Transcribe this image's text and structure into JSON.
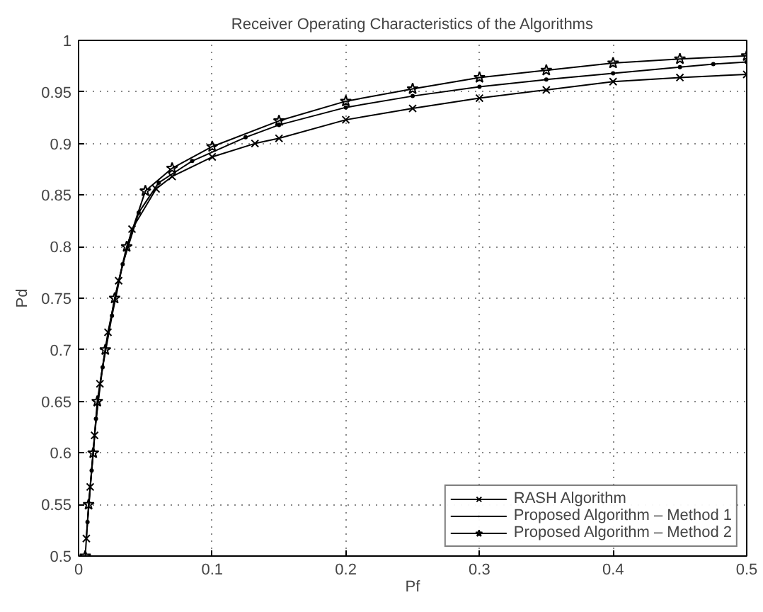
{
  "chart_data": {
    "type": "line",
    "title": "Receiver Operating Characteristics of the Algorithms",
    "xlabel": "Pf",
    "ylabel": "Pd",
    "xlim": [
      0,
      0.5
    ],
    "ylim": [
      0.5,
      1
    ],
    "xticks": [
      0,
      0.1,
      0.2,
      0.3,
      0.4,
      0.5
    ],
    "yticks": [
      0.5,
      0.55,
      0.6,
      0.65,
      0.7,
      0.75,
      0.8,
      0.85,
      0.9,
      0.95,
      1
    ],
    "grid": true,
    "legend": "bottom right",
    "line_style": "solid",
    "series": [
      {
        "name": "RASH Algorithm",
        "color": "#000000",
        "marker": "cross",
        "x": [
          0.0058,
          0.0087,
          0.012,
          0.016,
          0.022,
          0.03,
          0.04,
          0.058,
          0.07,
          0.1,
          0.132,
          0.15,
          0.2,
          0.25,
          0.3,
          0.35,
          0.4,
          0.45,
          0.5
        ],
        "values": [
          0.517,
          0.567,
          0.617,
          0.667,
          0.717,
          0.767,
          0.817,
          0.856,
          0.868,
          0.887,
          0.9,
          0.905,
          0.923,
          0.934,
          0.944,
          0.952,
          0.96,
          0.964,
          0.967
        ]
      },
      {
        "name": "Proposed Algorithm – Method 1",
        "color": "#000000",
        "marker": "circle",
        "x": [
          0.0067,
          0.0098,
          0.013,
          0.018,
          0.025,
          0.033,
          0.045,
          0.06,
          0.085,
          0.125,
          0.15,
          0.2,
          0.25,
          0.3,
          0.35,
          0.4,
          0.45,
          0.475,
          0.5
        ],
        "values": [
          0.533,
          0.583,
          0.633,
          0.683,
          0.733,
          0.783,
          0.833,
          0.862,
          0.883,
          0.906,
          0.918,
          0.935,
          0.946,
          0.955,
          0.962,
          0.968,
          0.974,
          0.977,
          0.979
        ]
      },
      {
        "name": "Proposed Algorithm – Method 2",
        "color": "#000000",
        "marker": "star",
        "x": [
          0.005,
          0.0075,
          0.011,
          0.014,
          0.02,
          0.027,
          0.036,
          0.05,
          0.07,
          0.1,
          0.15,
          0.2,
          0.25,
          0.3,
          0.35,
          0.4,
          0.45,
          0.5
        ],
        "values": [
          0.5,
          0.55,
          0.6,
          0.65,
          0.7,
          0.75,
          0.8,
          0.854,
          0.876,
          0.897,
          0.922,
          0.941,
          0.953,
          0.964,
          0.971,
          0.978,
          0.982,
          0.985
        ]
      }
    ]
  }
}
